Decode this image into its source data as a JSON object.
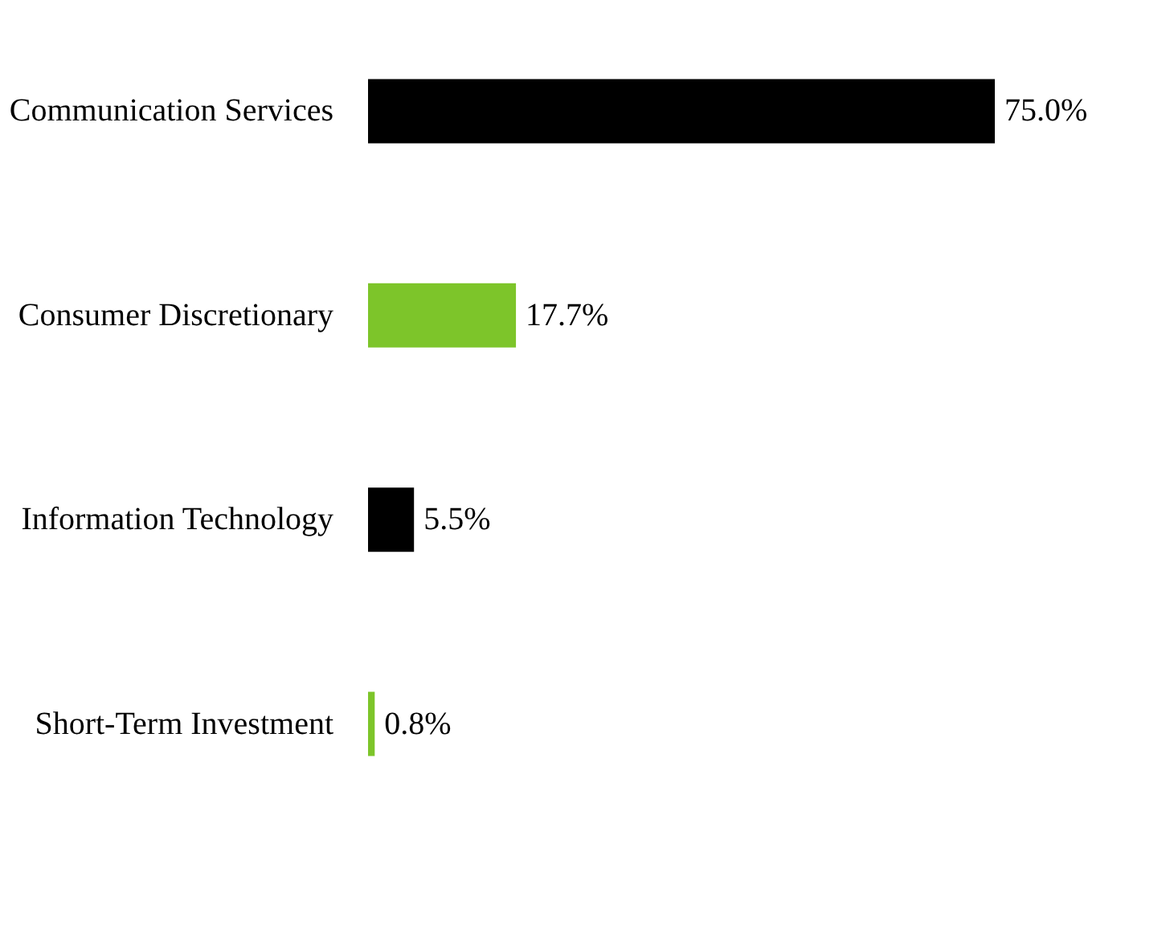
{
  "chart_data": {
    "type": "bar",
    "orientation": "horizontal",
    "categories": [
      "Communication Services",
      "Consumer Discretionary",
      "Information Technology",
      "Short-Term Investment"
    ],
    "values": [
      75.0,
      17.7,
      5.5,
      0.8
    ],
    "colors": [
      "#000000",
      "#7dc52a",
      "#000000",
      "#7dc52a"
    ],
    "value_labels": [
      "75.0%",
      "17.7%",
      "5.5%",
      "0.8%"
    ]
  }
}
